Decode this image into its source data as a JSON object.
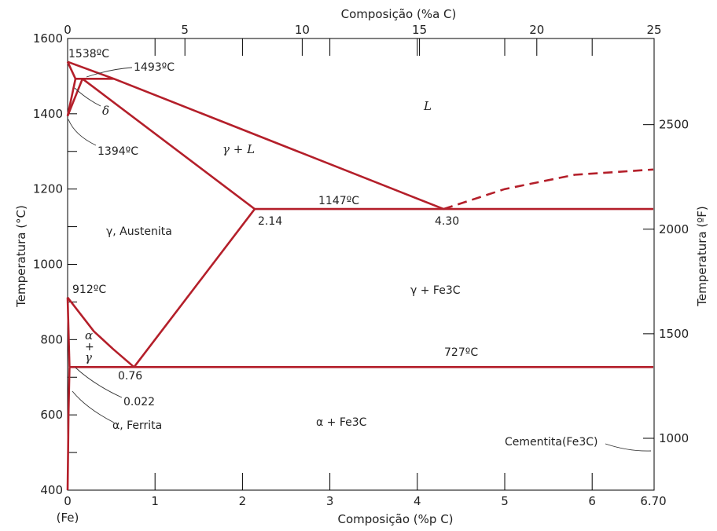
{
  "chart_data": {
    "type": "line",
    "title": "",
    "xlabel": "Composição (%p C)",
    "x2label": "Composição (%a C)",
    "ylabel": "Temperatura (°C)",
    "y2label": "Temperatura (ºF)",
    "xlim": [
      0,
      6.7
    ],
    "ylim": [
      400,
      1600
    ],
    "x_ticks": [
      0,
      1,
      2,
      3,
      4,
      5,
      6,
      6.7
    ],
    "x_tick_labels": [
      "0",
      "1",
      "2",
      "3",
      "4",
      "5",
      "6",
      "6.70"
    ],
    "x_origin_note": "(Fe)",
    "x2_ticks": [
      0,
      5,
      10,
      15,
      20,
      25
    ],
    "y_ticks": [
      400,
      600,
      800,
      1000,
      1200,
      1400,
      1600
    ],
    "y2_ticks": [
      1000,
      1500,
      2000,
      2500
    ],
    "y2_tick_labels": [
      "1000",
      "1500",
      "2000",
      "2500"
    ],
    "grid": true,
    "series": [
      {
        "style": "solid",
        "points": [
          [
            0,
            1538
          ],
          [
            0.53,
            1493
          ],
          [
            4.3,
            1147
          ]
        ]
      },
      {
        "style": "dashed",
        "points": [
          [
            4.3,
            1147
          ],
          [
            5.0,
            1200
          ],
          [
            5.8,
            1238
          ],
          [
            6.7,
            1252
          ]
        ]
      },
      {
        "style": "solid",
        "points": [
          [
            0,
            1538
          ],
          [
            0.09,
            1493
          ]
        ]
      },
      {
        "style": "solid",
        "points": [
          [
            0,
            1394
          ],
          [
            0.09,
            1493
          ],
          [
            0.53,
            1493
          ]
        ]
      },
      {
        "style": "solid",
        "points": [
          [
            0,
            1394
          ],
          [
            0.17,
            1493
          ]
        ]
      },
      {
        "style": "solid",
        "points": [
          [
            0.17,
            1493
          ],
          [
            2.14,
            1147
          ]
        ]
      },
      {
        "style": "solid",
        "points": [
          [
            2.14,
            1147
          ],
          [
            6.7,
            1147
          ]
        ]
      },
      {
        "style": "solid",
        "points": [
          [
            2.14,
            1147
          ],
          [
            0.76,
            727
          ]
        ]
      },
      {
        "style": "solid",
        "points": [
          [
            0,
            912
          ],
          [
            0.3,
            822
          ],
          [
            0.52,
            775
          ],
          [
            0.76,
            727
          ]
        ]
      },
      {
        "style": "solid",
        "points": [
          [
            0,
            912
          ],
          [
            0.022,
            727
          ]
        ]
      },
      {
        "style": "solid",
        "points": [
          [
            0.022,
            727
          ],
          [
            6.7,
            727
          ]
        ]
      },
      {
        "style": "solid",
        "points": [
          [
            0.022,
            727
          ],
          [
            0.01,
            600
          ],
          [
            0.005,
            500
          ],
          [
            0,
            400
          ]
        ]
      }
    ],
    "annotations": {
      "t1538": "1538ºC",
      "t1493": "1493ºC",
      "delta": "δ",
      "t1394": "1394ºC",
      "gamma_liquid": "γ + L",
      "liquid": "L",
      "t1147": "1147ºC",
      "c214": "2.14",
      "c430": "4.30",
      "austenite": "γ, Austenita",
      "t912": "912ºC",
      "gamma_fe3c": "γ + Fe3C",
      "alpha": "α",
      "plus": "+",
      "gamma": "γ",
      "t727": "727ºC",
      "c076": "0.76",
      "c0022": "0.022",
      "ferrite": "α, Ferrita",
      "alpha_fe3c": "α + Fe3C",
      "cementite": "Cementita(Fe3C)"
    }
  },
  "colors": {
    "line": "#b41f2a",
    "frame": "#000000",
    "text": "#222222"
  }
}
